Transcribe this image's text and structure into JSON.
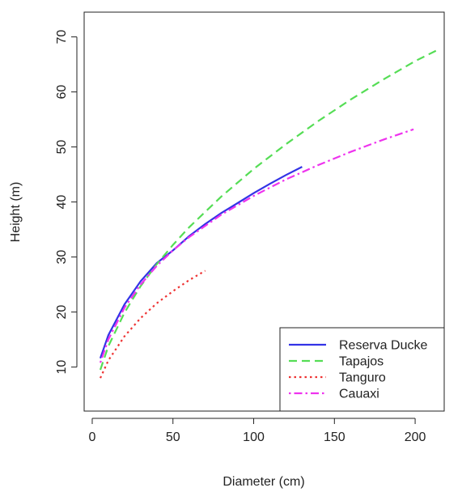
{
  "chart_data": {
    "type": "line",
    "title": "",
    "xlabel": "Diameter (cm)",
    "ylabel": "Height (m)",
    "xlim": [
      -5,
      218
    ],
    "ylim": [
      2,
      74.5
    ],
    "xticks": [
      0,
      50,
      100,
      150,
      200
    ],
    "yticks": [
      10,
      20,
      30,
      40,
      50,
      60,
      70
    ],
    "grid": false,
    "legend": {
      "position": "bottom-right"
    },
    "series": [
      {
        "name": "Reserva Ducke",
        "color": "#3333e6",
        "dash": "solid",
        "x": [
          5,
          10,
          20,
          30,
          40,
          50,
          60,
          70,
          80,
          90,
          100,
          110,
          120,
          130
        ],
        "y": [
          11.6,
          15.8,
          21.4,
          25.6,
          28.9,
          31.2,
          33.8,
          36.0,
          38.0,
          39.8,
          41.6,
          43.3,
          44.9,
          46.4
        ]
      },
      {
        "name": "Tapajos",
        "color": "#55dd55",
        "dash": "dashed",
        "x": [
          5,
          10,
          20,
          30,
          40,
          50,
          60,
          80,
          100,
          120,
          140,
          160,
          180,
          200,
          213
        ],
        "y": [
          9.5,
          13.8,
          19.9,
          24.7,
          28.7,
          32.2,
          35.4,
          41.0,
          46.0,
          50.5,
          54.7,
          58.6,
          62.2,
          65.6,
          67.5
        ]
      },
      {
        "name": "Tanguro",
        "color": "#ee3333",
        "dash": "dotted",
        "x": [
          5,
          10,
          20,
          30,
          40,
          50,
          60,
          70
        ],
        "y": [
          8.0,
          11.2,
          15.6,
          18.9,
          21.6,
          23.8,
          25.8,
          27.5
        ]
      },
      {
        "name": "Cauaxi",
        "color": "#ee33ee",
        "dash": "dotdash",
        "x": [
          5,
          10,
          20,
          30,
          40,
          50,
          60,
          80,
          100,
          120,
          140,
          160,
          180,
          199
        ],
        "y": [
          10.8,
          15.0,
          20.8,
          25.0,
          28.4,
          31.2,
          33.6,
          37.7,
          41.1,
          44.1,
          46.7,
          49.1,
          51.3,
          53.2
        ]
      }
    ]
  }
}
